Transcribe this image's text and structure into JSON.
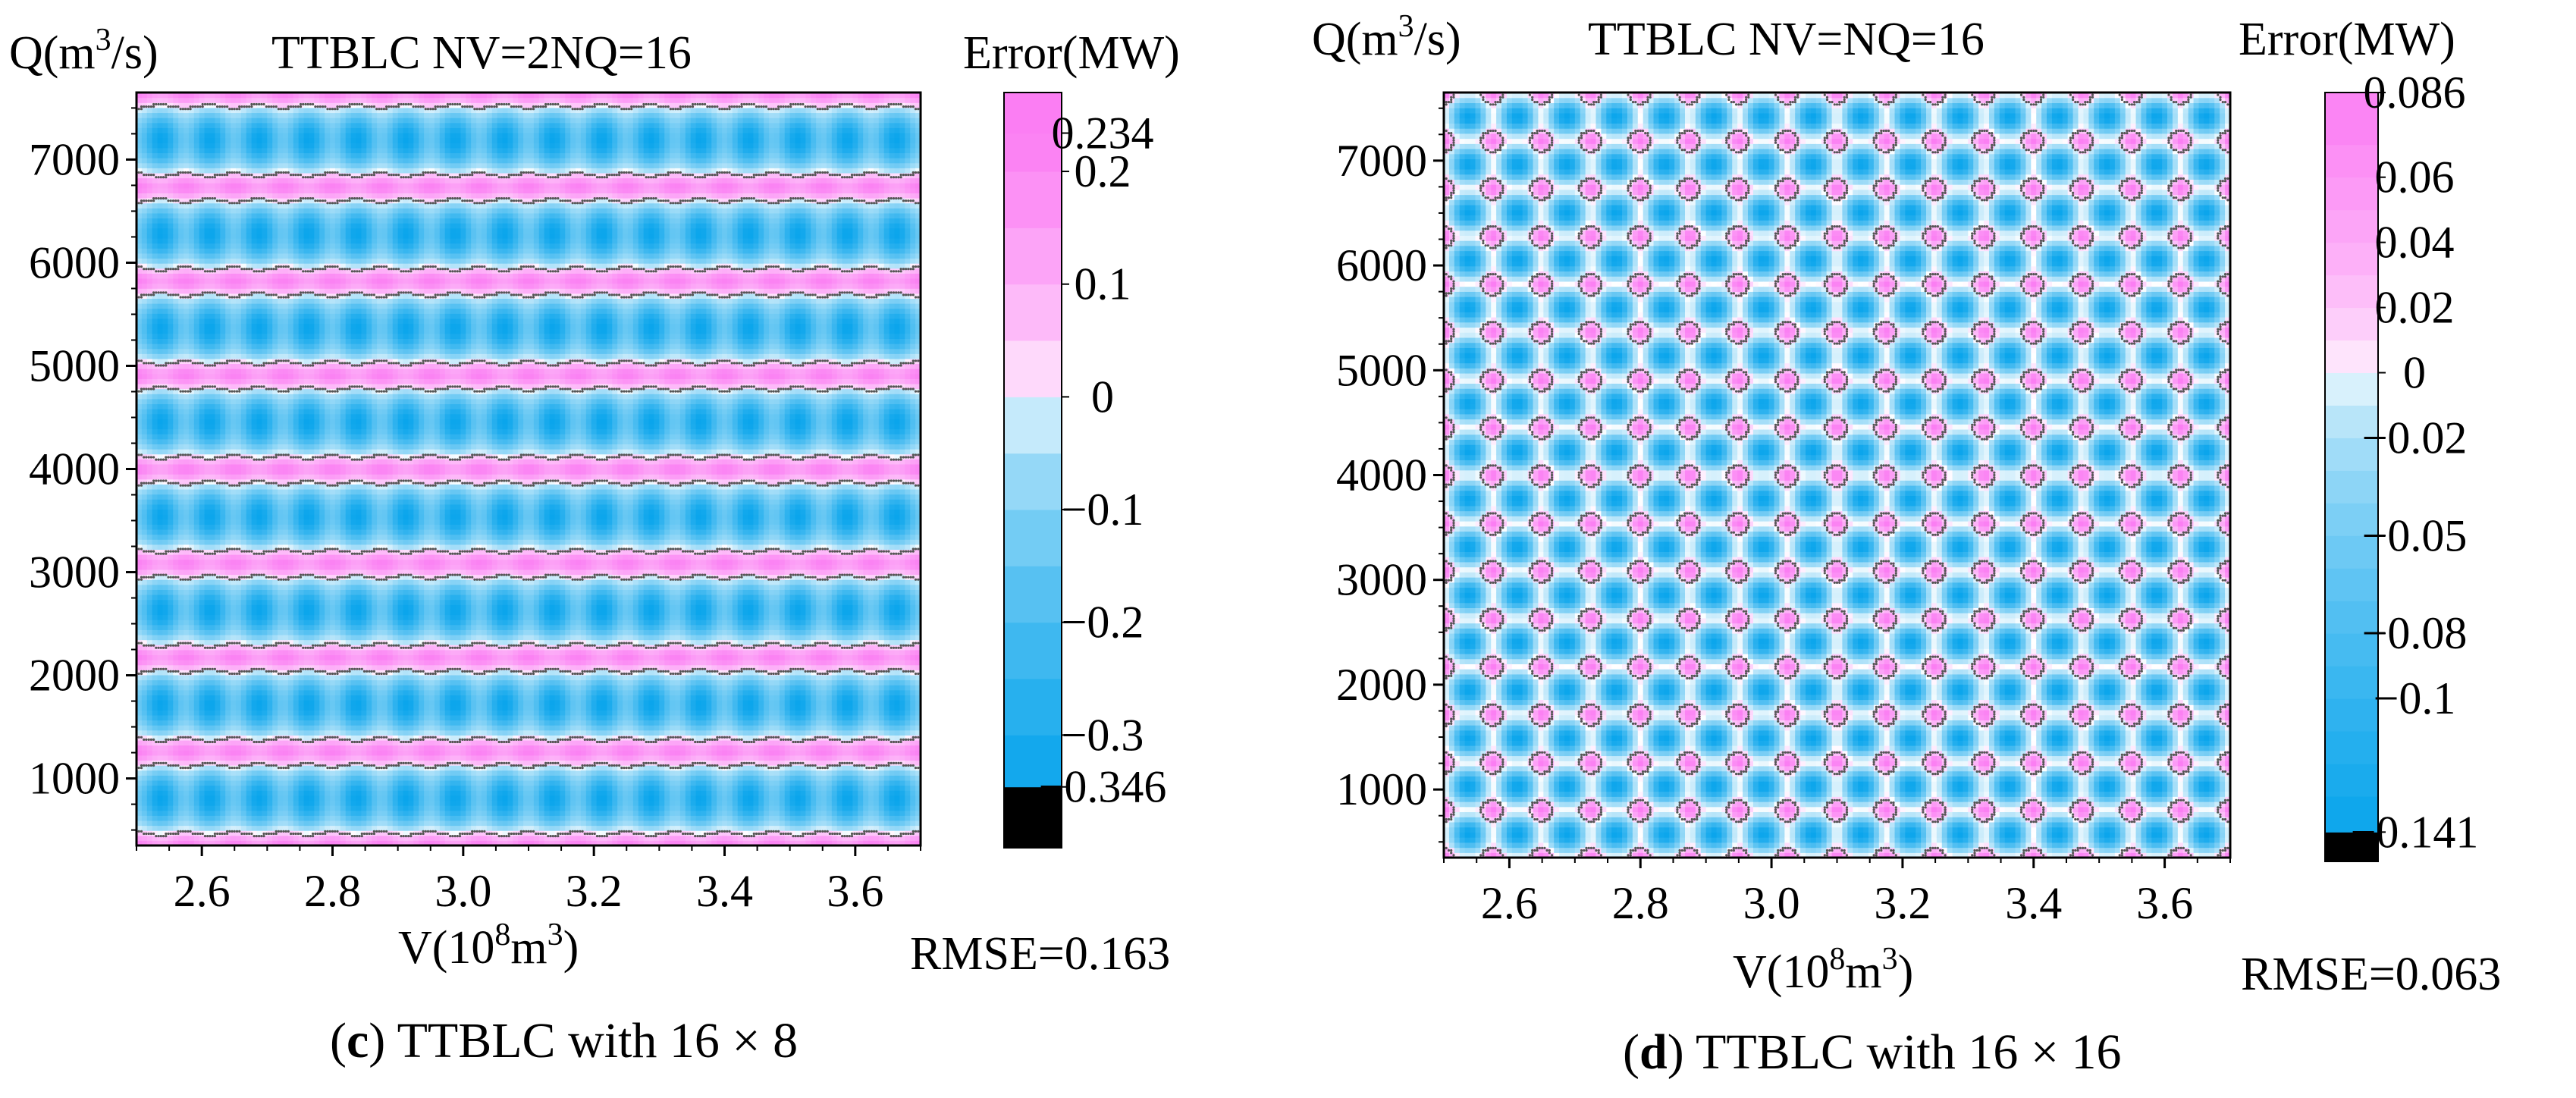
{
  "chart_data": [
    {
      "panel": "c",
      "type": "heatmap",
      "title": "TTBLC NV=2NQ=16",
      "caption": {
        "letter": "c",
        "text": "TTBLC with 16 × 8"
      },
      "xlabel": "V(10^8m^3)",
      "ylabel": "Q(m^3/s)",
      "colorbar_title": "Error(MW)",
      "rmse_label": "RMSE=0.163",
      "xlim": [
        2.5,
        3.7
      ],
      "ylim": [
        350,
        7650
      ],
      "x_ticks": [
        2.6,
        2.8,
        3.0,
        3.2,
        3.4,
        3.6
      ],
      "x_tick_labels": [
        "2.6",
        "2.8",
        "3.0",
        "3.2",
        "3.4",
        "3.6"
      ],
      "y_ticks": [
        1000,
        2000,
        3000,
        4000,
        5000,
        6000,
        7000
      ],
      "y_tick_labels": [
        "1000",
        "2000",
        "3000",
        "4000",
        "5000",
        "6000",
        "7000"
      ],
      "grid_v": [
        2.5,
        3.7,
        17
      ],
      "grid_q": [
        350,
        7650,
        9
      ],
      "error_min": -0.346,
      "error_max": 0.234,
      "colorbar_ticks": [
        0.234,
        0.2,
        0.1,
        0,
        -0.1,
        -0.2,
        -0.3,
        -0.346
      ],
      "colorbar_tick_labels": [
        "0.234",
        "0.2",
        "0.1",
        "0",
        "−0.1",
        "−0.2",
        "−0.3",
        "−0.346"
      ],
      "colorbar_levels": [
        -0.4,
        -0.346,
        -0.3,
        -0.25,
        -0.2,
        -0.15,
        -0.1,
        -0.05,
        0,
        0.05,
        0.1,
        0.15,
        0.2,
        0.234,
        0.27
      ]
    },
    {
      "panel": "d",
      "type": "heatmap",
      "title": "TTBLC NV=NQ=16",
      "caption": {
        "letter": "d",
        "text": "TTBLC with 16 × 16"
      },
      "xlabel": "V(10^8m^3)",
      "ylabel": "Q(m^3/s)",
      "colorbar_title": "Error(MW)",
      "rmse_label": "RMSE=0.063",
      "xlim": [
        2.5,
        3.7
      ],
      "ylim": [
        350,
        7650
      ],
      "x_ticks": [
        2.6,
        2.8,
        3.0,
        3.2,
        3.4,
        3.6
      ],
      "x_tick_labels": [
        "2.6",
        "2.8",
        "3.0",
        "3.2",
        "3.4",
        "3.6"
      ],
      "y_ticks": [
        1000,
        2000,
        3000,
        4000,
        5000,
        6000,
        7000
      ],
      "y_tick_labels": [
        "1000",
        "2000",
        "3000",
        "4000",
        "5000",
        "6000",
        "7000"
      ],
      "grid_v": [
        2.5,
        3.7,
        17
      ],
      "grid_q": [
        350,
        7650,
        17
      ],
      "error_min": -0.141,
      "error_max": 0.086,
      "colorbar_ticks": [
        0.086,
        0.06,
        0.04,
        0.02,
        0,
        -0.02,
        -0.05,
        -0.08,
        -0.1,
        -0.141
      ],
      "colorbar_tick_labels": [
        "0.086",
        "0.06",
        "0.04",
        "0.02",
        "0",
        "−0.02",
        "−0.05",
        "−0.08",
        "−0.1",
        "−0.141"
      ],
      "colorbar_levels": [
        -0.15,
        -0.141,
        -0.13,
        -0.12,
        -0.11,
        -0.1,
        -0.09,
        -0.08,
        -0.07,
        -0.06,
        -0.05,
        -0.04,
        -0.03,
        -0.02,
        -0.01,
        0,
        0.01,
        0.02,
        0.03,
        0.04,
        0.05,
        0.06,
        0.07,
        0.086
      ]
    }
  ],
  "colors": {
    "negative_extreme": "#0aa5ec",
    "zero": "#ffffff",
    "positive_extreme": "#fb7ef3",
    "clipped_min": "#000000",
    "contour": "#555555"
  }
}
